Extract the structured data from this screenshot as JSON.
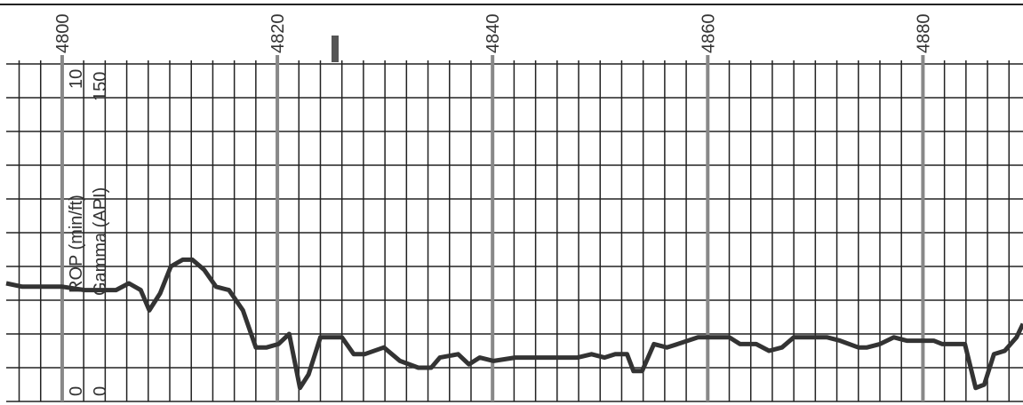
{
  "chart_data": {
    "type": "line",
    "xlim": [
      4794.8,
      4889.3
    ],
    "xticks": [
      4800,
      4820,
      4840,
      4860,
      4880
    ],
    "xminor": [
      4796,
      4798,
      4800,
      4802,
      4804,
      4806,
      4808,
      4810,
      4812,
      4814,
      4816,
      4818,
      4820,
      4822,
      4824,
      4826,
      4828,
      4830,
      4832,
      4834,
      4836,
      4838,
      4840,
      4842,
      4844,
      4846,
      4848,
      4850,
      4852,
      4854,
      4856,
      4858,
      4860,
      4862,
      4864,
      4866,
      4868,
      4870,
      4872,
      4874,
      4876,
      4878,
      4880,
      4882,
      4884,
      4886,
      4888
    ],
    "ylabel": "ROP (min/ft)",
    "ylim": [
      0,
      10
    ],
    "yticks": [
      0,
      10
    ],
    "yminor": [
      0,
      1,
      2,
      3,
      4,
      5,
      6,
      7,
      8,
      9,
      10
    ],
    "y2label": "Gamma (API)",
    "y2lim": [
      0,
      150
    ],
    "y2ticks": [
      0,
      150
    ],
    "grid": true,
    "series": [
      {
        "color": "#333333",
        "x": [
          4794.8,
          4796.3,
          4798.3,
          4800,
          4802.1,
          4805,
          4806.2,
          4807.3,
          4808.1,
          4809.1,
          4810.1,
          4811.2,
          4812.1,
          4813.2,
          4814.3,
          4815.5,
          4816.8,
          4818.0,
          4819.0,
          4820.1,
          4821.1,
          4822.1,
          4822.9,
          4824.0,
          4826.0,
          4827.1,
          4828.1,
          4829.9,
          4831.4,
          4833.1,
          4834.3,
          4835.1,
          4836.8,
          4837.8,
          4838.8,
          4840.1,
          4842.1,
          4843.8,
          4845.0,
          4846.3,
          4847.9,
          4849.2,
          4850.4,
          4851.4,
          4852.5,
          4853.1,
          4853.9,
          4855.0,
          4856.2,
          4857.2,
          4859.1,
          4860.3,
          4862.0,
          4863.0,
          4864.5,
          4865.7,
          4866.9,
          4868.0,
          4869.4,
          4871.1,
          4872.3,
          4874.0,
          4874.8,
          4876.0,
          4877.3,
          4878.5,
          4879.8,
          4881.0,
          4881.8,
          4883.1,
          4883.9,
          4884.9,
          4885.7,
          4886.6,
          4887.6,
          4888.7,
          4889.3
        ],
        "values": [
          3.5,
          3.4,
          3.4,
          3.4,
          3.3,
          3.3,
          3.5,
          3.3,
          2.7,
          3.2,
          4.0,
          4.2,
          4.2,
          3.9,
          3.4,
          3.3,
          2.7,
          1.6,
          1.6,
          1.7,
          2.0,
          0.4,
          0.8,
          1.9,
          1.9,
          1.4,
          1.4,
          1.6,
          1.2,
          1.0,
          1.0,
          1.3,
          1.4,
          1.1,
          1.3,
          1.2,
          1.3,
          1.3,
          1.3,
          1.3,
          1.3,
          1.4,
          1.3,
          1.4,
          1.4,
          0.9,
          0.9,
          1.7,
          1.6,
          1.7,
          1.9,
          1.9,
          1.9,
          1.7,
          1.7,
          1.5,
          1.6,
          1.9,
          1.9,
          1.9,
          1.8,
          1.6,
          1.6,
          1.7,
          1.9,
          1.8,
          1.8,
          1.8,
          1.7,
          1.7,
          1.7,
          0.4,
          0.5,
          1.4,
          1.5,
          1.9,
          2.3
        ]
      }
    ]
  }
}
